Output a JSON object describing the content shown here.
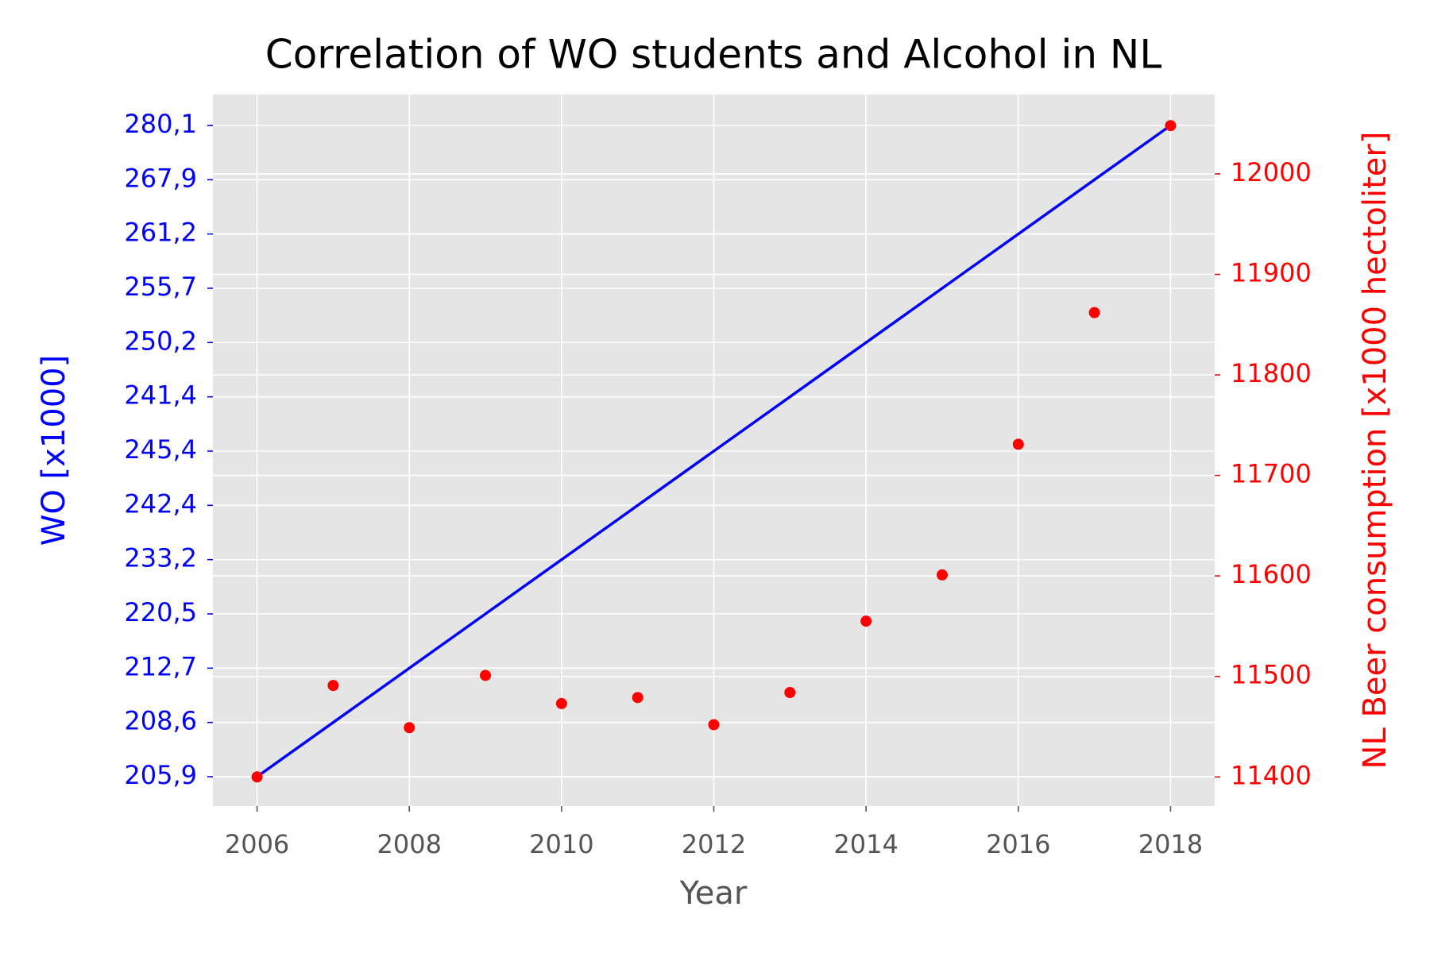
{
  "chart_data": {
    "type": "line",
    "title": "Correlation of WO students and Alcohol in NL",
    "xlabel": "Year",
    "ylabel": "WO [x1000]",
    "y2label": "NL Beer consumption [x1000 hectoliter]",
    "x": [
      2006,
      2007,
      2008,
      2009,
      2010,
      2011,
      2012,
      2013,
      2014,
      2015,
      2016,
      2017,
      2018
    ],
    "xlim": [
      2005.42,
      2018.58
    ],
    "xticks": [
      2006,
      2008,
      2010,
      2012,
      2014,
      2016,
      2018
    ],
    "y_categories": [
      "205,9",
      "208,6",
      "212,7",
      "220,5",
      "233,2",
      "242,4",
      "245,4",
      "241,4",
      "250,2",
      "255,7",
      "261,2",
      "267,9",
      "280,1"
    ],
    "y2lim": [
      11371,
      12079
    ],
    "y2ticks": [
      11400,
      11500,
      11600,
      11700,
      11800,
      11900,
      12000
    ],
    "grid": true,
    "series": [
      {
        "kind": "line",
        "color": "#0000ff",
        "values": [
          "205,9",
          "208,6",
          "212,7",
          "220,5",
          "233,2",
          "242,4",
          "245,4",
          "241,4",
          "250,2",
          "255,7",
          "261,2",
          "267,9",
          "280,1"
        ]
      },
      {
        "kind": "scatter",
        "axis": "y2",
        "color": "#ff0000",
        "values": [
          11400,
          11491,
          11449,
          11501,
          11473,
          11479,
          11452,
          11484,
          11555,
          11601,
          11731,
          11862,
          12048
        ]
      }
    ]
  }
}
